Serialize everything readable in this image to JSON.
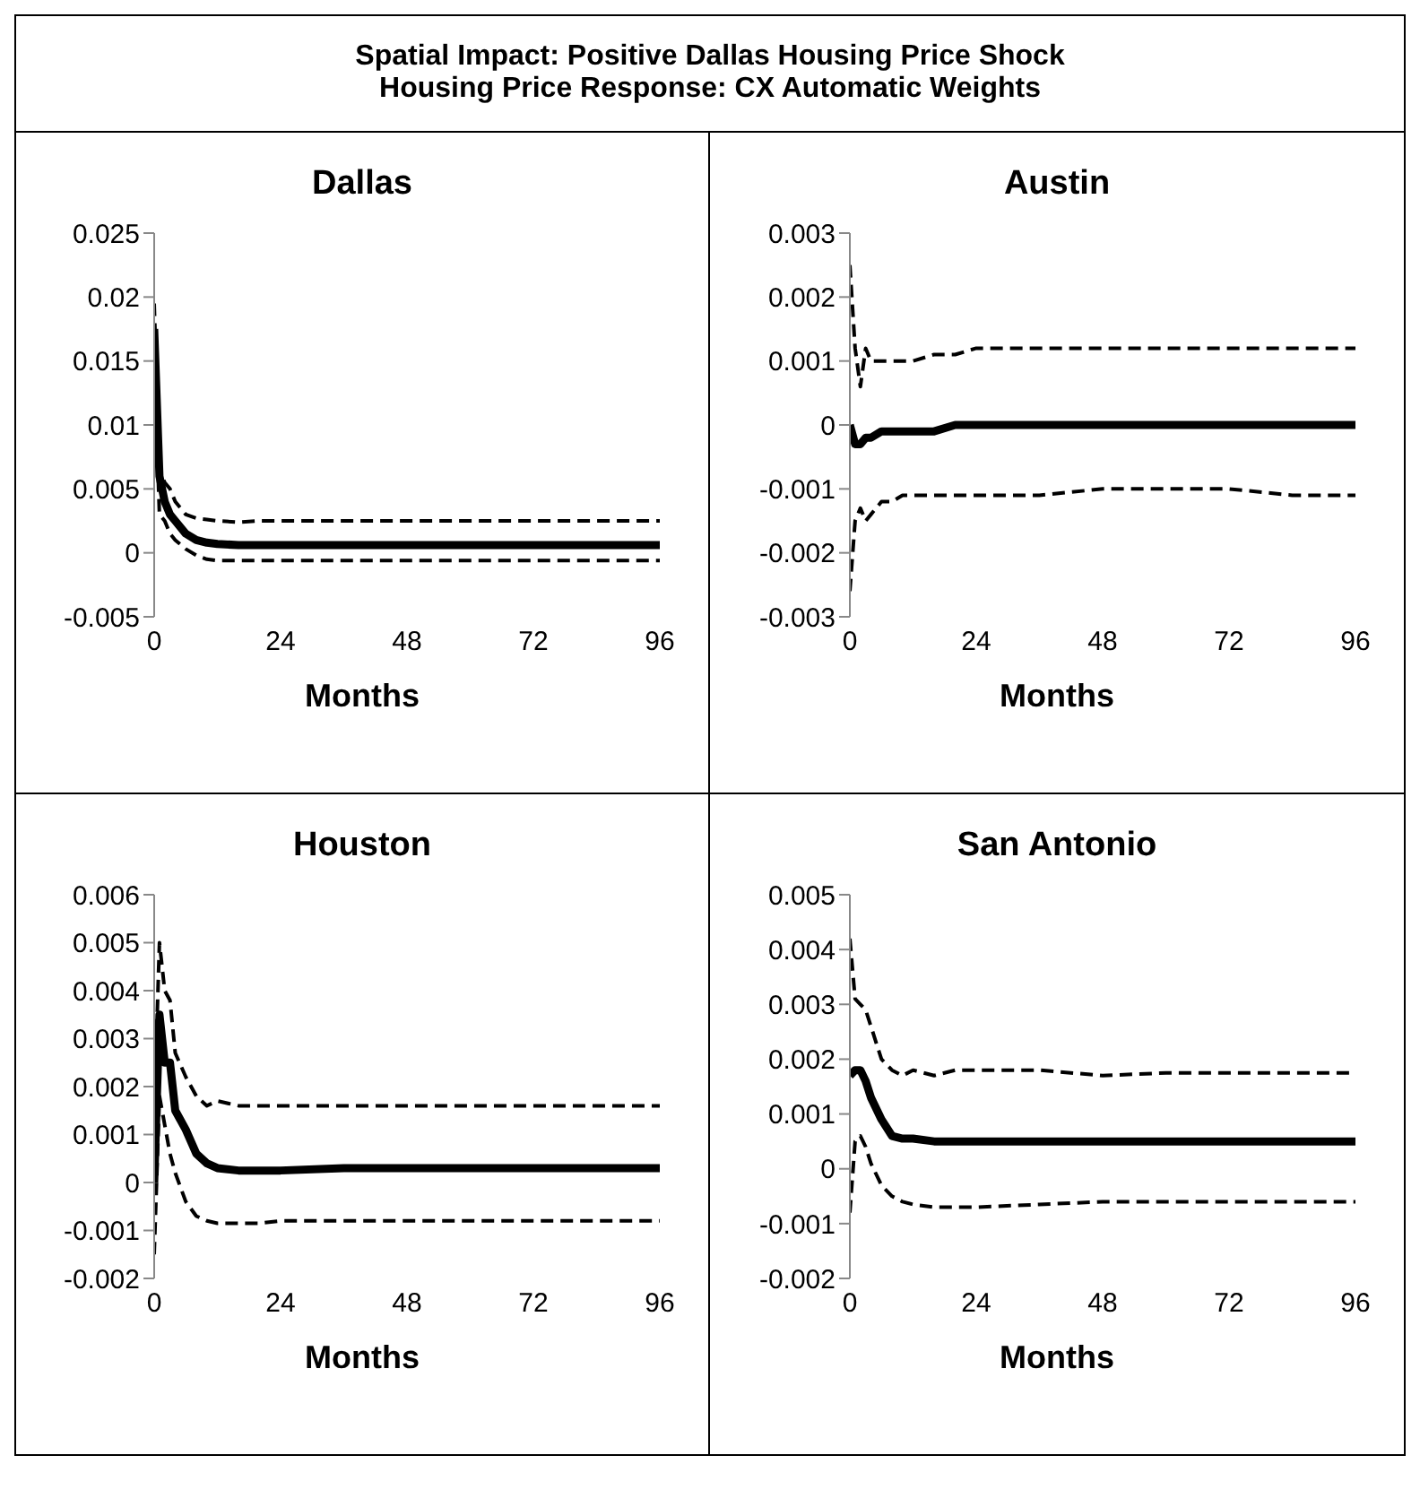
{
  "chart_data": [
    {
      "type": "other",
      "title": "Spatial Impact: Positive Dallas Housing Price Shock",
      "subtitle": "Housing Price Response: CX Automatic Weights"
    },
    {
      "type": "line",
      "title": "Dallas",
      "xlabel": "Months",
      "x": [
        0,
        1,
        2,
        3,
        4,
        6,
        8,
        10,
        12,
        16,
        20,
        24,
        36,
        48,
        60,
        72,
        84,
        96
      ],
      "xlim": [
        0,
        96
      ],
      "xticks": [
        0,
        24,
        48,
        72,
        96
      ],
      "ylim": [
        -0.005,
        0.025
      ],
      "yticks": [
        -0.005,
        0,
        0.005,
        0.01,
        0.015,
        0.02,
        0.025
      ],
      "marker": "none",
      "series": [
        {
          "color": "#000000",
          "line_style": "solid",
          "values": [
            0.0175,
            0.006,
            0.004,
            0.003,
            0.0025,
            0.0015,
            0.001,
            0.0008,
            0.0007,
            0.0006,
            0.0006,
            0.0006,
            0.0006,
            0.0006,
            0.0006,
            0.0006,
            0.0006,
            0.0006
          ]
        },
        {
          "color": "#000000",
          "line_style": "dashed",
          "values": [
            0.0195,
            0.0065,
            0.0055,
            0.005,
            0.004,
            0.003,
            0.0027,
            0.0026,
            0.0025,
            0.0024,
            0.0025,
            0.0025,
            0.0025,
            0.0025,
            0.0025,
            0.0025,
            0.0025,
            0.0025
          ]
        },
        {
          "color": "#000000",
          "line_style": "dashed",
          "values": [
            0.015,
            0.003,
            0.0025,
            0.0015,
            0.001,
            0.0003,
            -0.0002,
            -0.0005,
            -0.0006,
            -0.0006,
            -0.0006,
            -0.0006,
            -0.0006,
            -0.0006,
            -0.0006,
            -0.0006,
            -0.0006,
            -0.0006
          ]
        }
      ]
    },
    {
      "type": "line",
      "title": "Austin",
      "xlabel": "Months",
      "x": [
        0,
        1,
        2,
        3,
        4,
        6,
        8,
        10,
        12,
        16,
        20,
        24,
        36,
        48,
        60,
        72,
        84,
        96
      ],
      "xlim": [
        0,
        96
      ],
      "xticks": [
        0,
        24,
        48,
        72,
        96
      ],
      "ylim": [
        -0.003,
        0.003
      ],
      "yticks": [
        -0.003,
        -0.002,
        -0.001,
        0,
        0.001,
        0.002,
        0.003
      ],
      "marker": "none",
      "series": [
        {
          "color": "#000000",
          "line_style": "solid",
          "values": [
            0,
            -0.0003,
            -0.0003,
            -0.0002,
            -0.0002,
            -0.0001,
            -0.0001,
            -0.0001,
            -0.0001,
            -0.0001,
            0,
            0,
            0,
            0,
            0,
            0,
            0,
            0
          ]
        },
        {
          "color": "#000000",
          "line_style": "dashed",
          "values": [
            0.0025,
            0.0012,
            0.0006,
            0.0012,
            0.001,
            0.001,
            0.001,
            0.001,
            0.001,
            0.0011,
            0.0011,
            0.0012,
            0.0012,
            0.0012,
            0.0012,
            0.0012,
            0.0012,
            0.0012
          ]
        },
        {
          "color": "#000000",
          "line_style": "dashed",
          "values": [
            -0.0026,
            -0.0015,
            -0.0013,
            -0.0015,
            -0.0014,
            -0.0012,
            -0.0012,
            -0.0011,
            -0.0011,
            -0.0011,
            -0.0011,
            -0.0011,
            -0.0011,
            -0.001,
            -0.001,
            -0.001,
            -0.0011,
            -0.0011
          ]
        }
      ]
    },
    {
      "type": "line",
      "title": "Houston",
      "xlabel": "Months",
      "x": [
        0,
        1,
        2,
        3,
        4,
        6,
        8,
        10,
        12,
        16,
        20,
        24,
        36,
        48,
        60,
        72,
        84,
        96
      ],
      "xlim": [
        0,
        96
      ],
      "xticks": [
        0,
        24,
        48,
        72,
        96
      ],
      "ylim": [
        -0.002,
        0.006
      ],
      "yticks": [
        -0.002,
        -0.001,
        0,
        0.001,
        0.002,
        0.003,
        0.004,
        0.005,
        0.006
      ],
      "marker": "none",
      "series": [
        {
          "color": "#000000",
          "line_style": "solid",
          "values": [
            0,
            0.0035,
            0.0025,
            0.0025,
            0.0015,
            0.0011,
            0.0006,
            0.0004,
            0.0003,
            0.00025,
            0.00025,
            0.00025,
            0.0003,
            0.0003,
            0.0003,
            0.0003,
            0.0003,
            0.0003
          ]
        },
        {
          "color": "#000000",
          "line_style": "dashed",
          "values": [
            0.0015,
            0.005,
            0.004,
            0.0038,
            0.0027,
            0.0022,
            0.0018,
            0.0016,
            0.0017,
            0.0016,
            0.0016,
            0.0016,
            0.0016,
            0.0016,
            0.0016,
            0.0016,
            0.0016,
            0.0016
          ]
        },
        {
          "color": "#000000",
          "line_style": "dashed",
          "values": [
            -0.0015,
            0.0018,
            0.0012,
            0.0006,
            0.0002,
            -0.0004,
            -0.0007,
            -0.0008,
            -0.00085,
            -0.00085,
            -0.00085,
            -0.0008,
            -0.0008,
            -0.0008,
            -0.0008,
            -0.0008,
            -0.0008,
            -0.0008
          ]
        }
      ]
    },
    {
      "type": "line",
      "title": "San Antonio",
      "xlabel": "Months",
      "x": [
        0,
        1,
        2,
        3,
        4,
        6,
        8,
        10,
        12,
        16,
        20,
        24,
        36,
        48,
        60,
        72,
        84,
        96
      ],
      "xlim": [
        0,
        96
      ],
      "xticks": [
        0,
        24,
        48,
        72,
        96
      ],
      "ylim": [
        -0.002,
        0.005
      ],
      "yticks": [
        -0.002,
        -0.001,
        0,
        0.001,
        0.002,
        0.003,
        0.004,
        0.005
      ],
      "marker": "none",
      "series": [
        {
          "color": "#000000",
          "line_style": "solid",
          "values": [
            0.0017,
            0.0018,
            0.0018,
            0.0016,
            0.0013,
            0.0009,
            0.0006,
            0.00055,
            0.00055,
            0.0005,
            0.0005,
            0.0005,
            0.0005,
            0.0005,
            0.0005,
            0.0005,
            0.0005,
            0.0005
          ]
        },
        {
          "color": "#000000",
          "line_style": "dashed",
          "values": [
            0.0042,
            0.0031,
            0.003,
            0.0029,
            0.0026,
            0.002,
            0.0018,
            0.0017,
            0.0018,
            0.0017,
            0.0018,
            0.0018,
            0.0018,
            0.0017,
            0.00175,
            0.00175,
            0.00175,
            0.00175
          ]
        },
        {
          "color": "#000000",
          "line_style": "dashed",
          "values": [
            -0.0008,
            0.0005,
            0.0006,
            0.0004,
            0.0001,
            -0.0003,
            -0.0005,
            -0.0006,
            -0.00065,
            -0.0007,
            -0.0007,
            -0.0007,
            -0.00065,
            -0.0006,
            -0.0006,
            -0.0006,
            -0.0006,
            -0.0006
          ]
        }
      ]
    }
  ]
}
